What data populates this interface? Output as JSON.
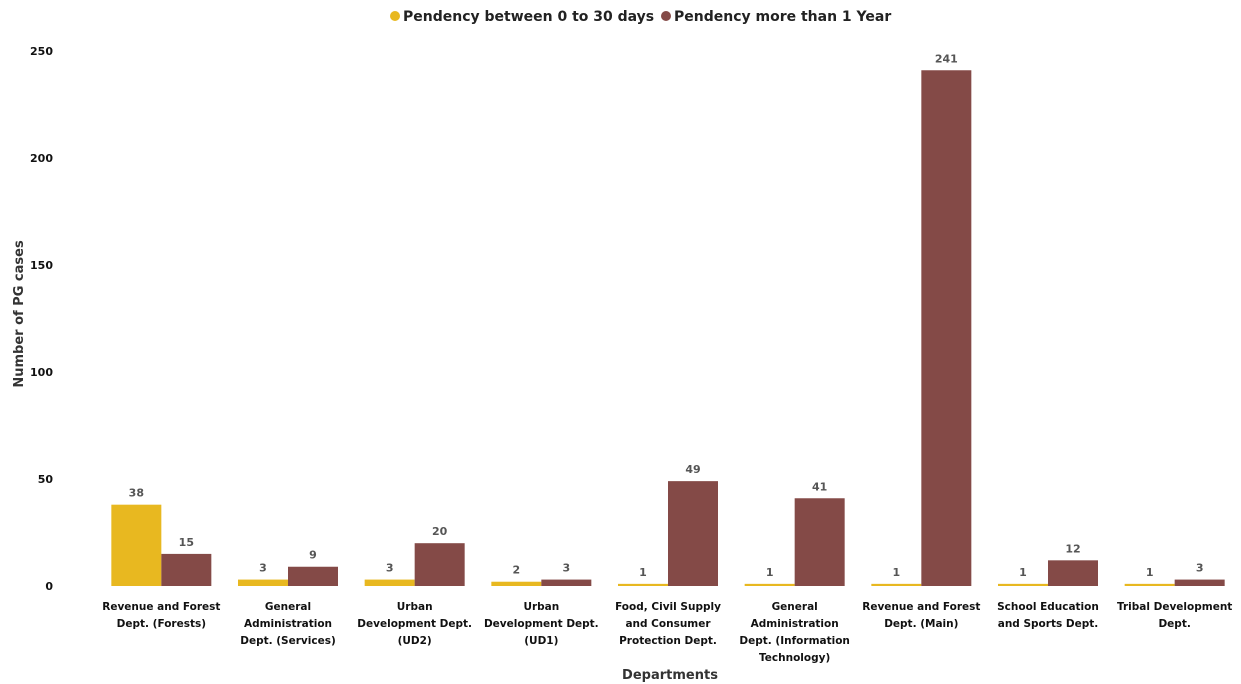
{
  "chart_data": {
    "type": "bar",
    "xlabel": "Departments",
    "ylabel": "Number of PG cases",
    "ylim": [
      0,
      250
    ],
    "yticks": [
      0,
      50,
      100,
      150,
      200,
      250
    ],
    "grid": false,
    "legend_position": "top-center",
    "categories": [
      [
        "Revenue and Forest",
        "Dept. (Forests)"
      ],
      [
        "General",
        "Administration",
        "Dept. (Services)"
      ],
      [
        "Urban",
        "Development Dept.",
        "(UD2)"
      ],
      [
        "Urban",
        "Development Dept.",
        "(UD1)"
      ],
      [
        "Food, Civil Supply",
        "and Consumer",
        "Protection Dept."
      ],
      [
        "General",
        "Administration",
        "Dept. (Information",
        "Technology)"
      ],
      [
        "Revenue and Forest",
        "Dept. (Main)"
      ],
      [
        "School Education",
        "and Sports Dept."
      ],
      [
        "Tribal Development",
        "Dept."
      ]
    ],
    "series": [
      {
        "name": "Pendency between 0 to 30 days",
        "color": "#E8B820",
        "values": [
          38,
          3,
          3,
          2,
          1,
          1,
          1,
          1,
          1
        ]
      },
      {
        "name": "Pendency more than 1 Year",
        "color": "#844A47",
        "values": [
          15,
          9,
          20,
          3,
          49,
          41,
          241,
          12,
          3
        ]
      }
    ]
  }
}
